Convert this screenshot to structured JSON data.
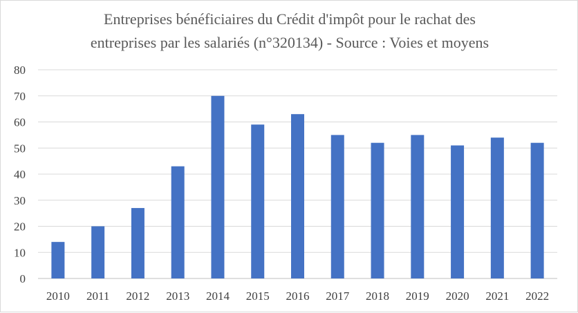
{
  "chart_data": {
    "type": "bar",
    "title_lines": [
      "Entreprises bénéficiaires  du Crédit d'impôt pour le rachat des",
      "entreprises par les salariés (n°320134) - Source : Voies et moyens"
    ],
    "categories": [
      "2010",
      "2011",
      "2012",
      "2013",
      "2014",
      "2015",
      "2016",
      "2017",
      "2018",
      "2019",
      "2020",
      "2021",
      "2022"
    ],
    "values": [
      14,
      20,
      27,
      43,
      70,
      59,
      63,
      55,
      52,
      55,
      51,
      54,
      52
    ],
    "ylim": [
      0,
      80
    ],
    "yticks": [
      0,
      10,
      20,
      30,
      40,
      50,
      60,
      70,
      80
    ],
    "grid": true,
    "legend": "none",
    "bar_color": "#4472c4"
  }
}
